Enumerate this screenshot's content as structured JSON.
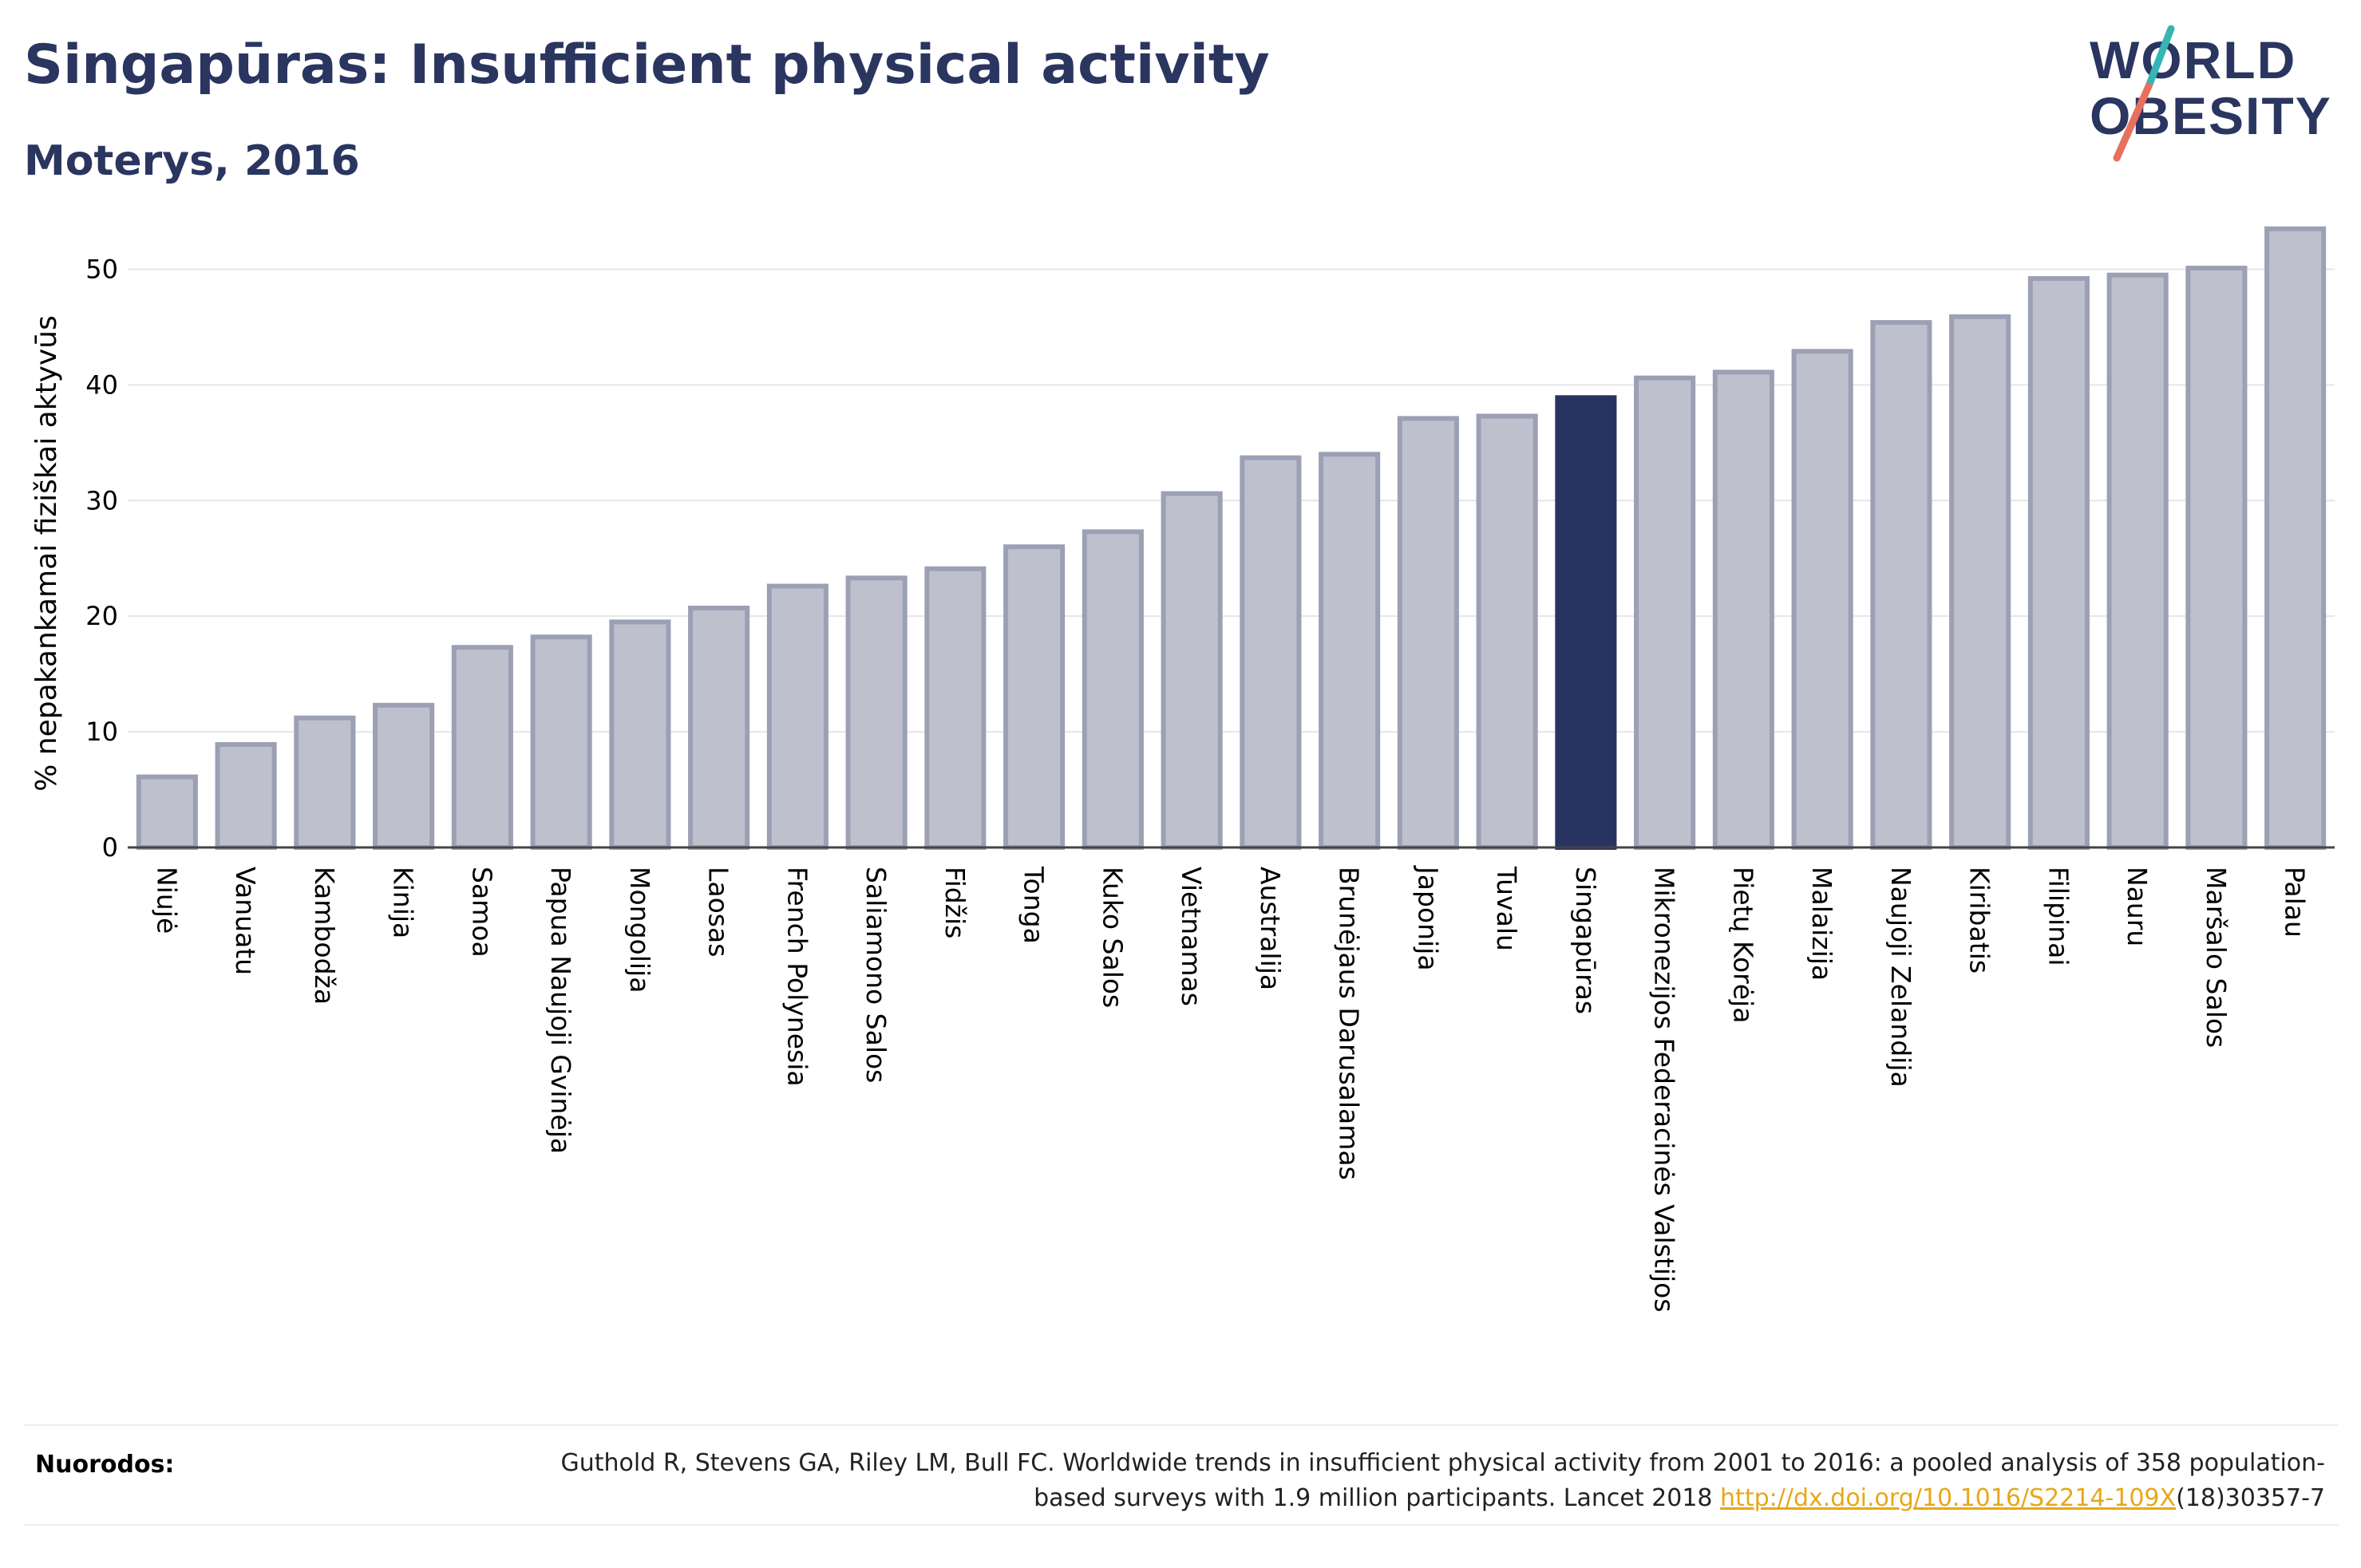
{
  "header": {
    "title": "Singapūras: Insufficient physical activity",
    "subtitle": "Moterys, 2016"
  },
  "logo": {
    "line1": "WORLD",
    "line2": "OBESITY"
  },
  "footer": {
    "label": "Nuorodos:",
    "citation_part1": "Guthold R, Stevens GA, Riley LM, Bull FC. Worldwide trends in insufficient physical activity from 2001 to 2016: a pooled analysis of 358 population-based surveys with 1.9 million participants. Lancet 2018 ",
    "citation_link": "http://dx.doi.org/10.1016/S2214-109X",
    "citation_part2": "(18)30357-7"
  },
  "colors": {
    "title": "#2a3560",
    "bar_fill": "#bec1cd",
    "bar_stroke": "#9ba0b5",
    "highlight": "#283460",
    "grid": "#e6e6e6",
    "link": "#e6a817"
  },
  "chart_data": {
    "type": "bar",
    "ylabel": "% nepakankamai fiziškai aktyvūs",
    "ylim": [
      0,
      55
    ],
    "yticks": [
      0,
      10,
      20,
      30,
      40,
      50
    ],
    "grid": true,
    "highlight": "Singapūras",
    "categories": [
      "Niujė",
      "Vanuatu",
      "Kambodža",
      "Kinija",
      "Samoa",
      "Papua Naujoji Gvinėja",
      "Mongolija",
      "Laosas",
      "French Polynesia",
      "Saliamono Salos",
      "Fidžis",
      "Tonga",
      "Kuko Salos",
      "Vietnamas",
      "Australija",
      "Brunėjaus Darusalamas",
      "Japonija",
      "Tuvalu",
      "Singapūras",
      "Mikronezijos Federacinės Valstijos",
      "Pietų Korėja",
      "Malaizija",
      "Naujoji Zelandija",
      "Kiribatis",
      "Filipinai",
      "Nauru",
      "Maršalo Salos",
      "Palau"
    ],
    "values": [
      6.1,
      8.9,
      11.2,
      12.3,
      17.3,
      18.2,
      19.5,
      20.7,
      22.6,
      23.3,
      24.1,
      26.0,
      27.3,
      30.6,
      33.7,
      34.0,
      37.1,
      37.3,
      38.9,
      40.6,
      41.1,
      42.9,
      45.4,
      45.9,
      49.2,
      49.5,
      50.1,
      53.5
    ]
  }
}
